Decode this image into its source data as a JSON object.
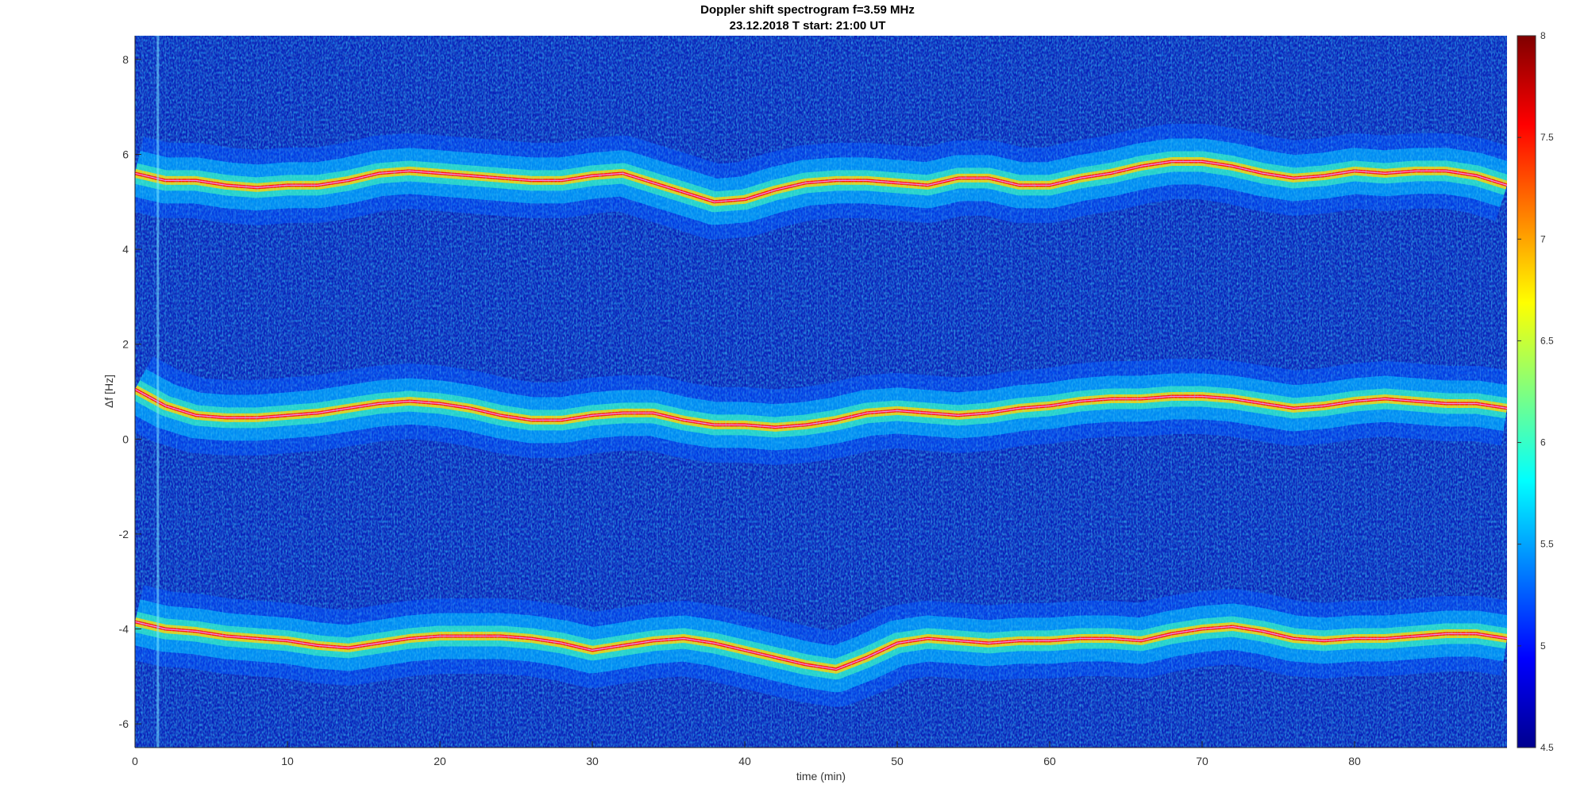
{
  "chart_data": {
    "type": "heatmap",
    "title": "Doppler shift spectrogram f=3.59 MHz",
    "subtitle": "23.12.2018   T start: 21:00 UT",
    "xlabel": "time (min)",
    "ylabel": "Δf [Hz]",
    "xlim": [
      0,
      90
    ],
    "ylim": [
      -6.5,
      8.5
    ],
    "x_ticks": [
      0,
      10,
      20,
      30,
      40,
      50,
      60,
      70,
      80
    ],
    "y_ticks": [
      -6,
      -4,
      -2,
      0,
      2,
      4,
      6,
      8
    ],
    "colorbar": {
      "colormap": "jet",
      "range": [
        4.5,
        8
      ],
      "ticks": [
        4.5,
        5,
        5.5,
        6,
        6.5,
        7,
        7.5,
        8
      ],
      "tick_labels": [
        "4.5",
        "5",
        "5.5",
        "6",
        "6.5",
        "7",
        "7.5",
        "8"
      ]
    },
    "series": [
      {
        "x": [
          0,
          2,
          4,
          6,
          8,
          10,
          12,
          14,
          16,
          18,
          20,
          22,
          24,
          26,
          28,
          30,
          32,
          34,
          36,
          38,
          40,
          42,
          44,
          46,
          48,
          50,
          52,
          54,
          56,
          58,
          60,
          62,
          64,
          66,
          68,
          70,
          72,
          74,
          76,
          78,
          80,
          82,
          84,
          86,
          88,
          90
        ],
        "y": [
          5.6,
          5.45,
          5.45,
          5.35,
          5.3,
          5.35,
          5.35,
          5.45,
          5.6,
          5.65,
          5.6,
          5.55,
          5.5,
          5.45,
          5.45,
          5.55,
          5.6,
          5.4,
          5.2,
          5.0,
          5.05,
          5.25,
          5.4,
          5.45,
          5.45,
          5.4,
          5.35,
          5.5,
          5.5,
          5.35,
          5.35,
          5.5,
          5.6,
          5.75,
          5.85,
          5.85,
          5.75,
          5.6,
          5.5,
          5.55,
          5.65,
          5.6,
          5.65,
          5.65,
          5.55,
          5.35
        ]
      },
      {
        "x": [
          0,
          2,
          4,
          6,
          8,
          10,
          12,
          14,
          16,
          18,
          20,
          22,
          24,
          26,
          28,
          30,
          32,
          34,
          36,
          38,
          40,
          42,
          44,
          46,
          48,
          50,
          52,
          54,
          56,
          58,
          60,
          62,
          64,
          66,
          68,
          70,
          72,
          74,
          76,
          78,
          80,
          82,
          84,
          86,
          88,
          90
        ],
        "y": [
          1.05,
          0.7,
          0.5,
          0.45,
          0.45,
          0.5,
          0.55,
          0.65,
          0.75,
          0.8,
          0.75,
          0.65,
          0.5,
          0.4,
          0.4,
          0.5,
          0.55,
          0.55,
          0.4,
          0.3,
          0.3,
          0.25,
          0.3,
          0.4,
          0.55,
          0.6,
          0.55,
          0.5,
          0.55,
          0.65,
          0.7,
          0.8,
          0.85,
          0.85,
          0.9,
          0.9,
          0.85,
          0.75,
          0.65,
          0.7,
          0.8,
          0.85,
          0.8,
          0.75,
          0.75,
          0.65
        ]
      },
      {
        "x": [
          0,
          2,
          4,
          6,
          8,
          10,
          12,
          14,
          16,
          18,
          20,
          22,
          24,
          26,
          28,
          30,
          32,
          34,
          36,
          38,
          40,
          42,
          44,
          46,
          48,
          50,
          52,
          54,
          56,
          58,
          60,
          62,
          64,
          66,
          68,
          70,
          72,
          74,
          76,
          78,
          80,
          82,
          84,
          86,
          88,
          90
        ],
        "y": [
          -3.85,
          -4.0,
          -4.05,
          -4.15,
          -4.2,
          -4.25,
          -4.35,
          -4.4,
          -4.3,
          -4.2,
          -4.15,
          -4.15,
          -4.15,
          -4.2,
          -4.3,
          -4.45,
          -4.35,
          -4.25,
          -4.2,
          -4.3,
          -4.45,
          -4.6,
          -4.75,
          -4.85,
          -4.6,
          -4.3,
          -4.2,
          -4.25,
          -4.3,
          -4.25,
          -4.25,
          -4.2,
          -4.2,
          -4.25,
          -4.1,
          -4.0,
          -3.95,
          -4.05,
          -4.2,
          -4.25,
          -4.2,
          -4.2,
          -4.15,
          -4.1,
          -4.1,
          -4.2
        ]
      }
    ]
  }
}
